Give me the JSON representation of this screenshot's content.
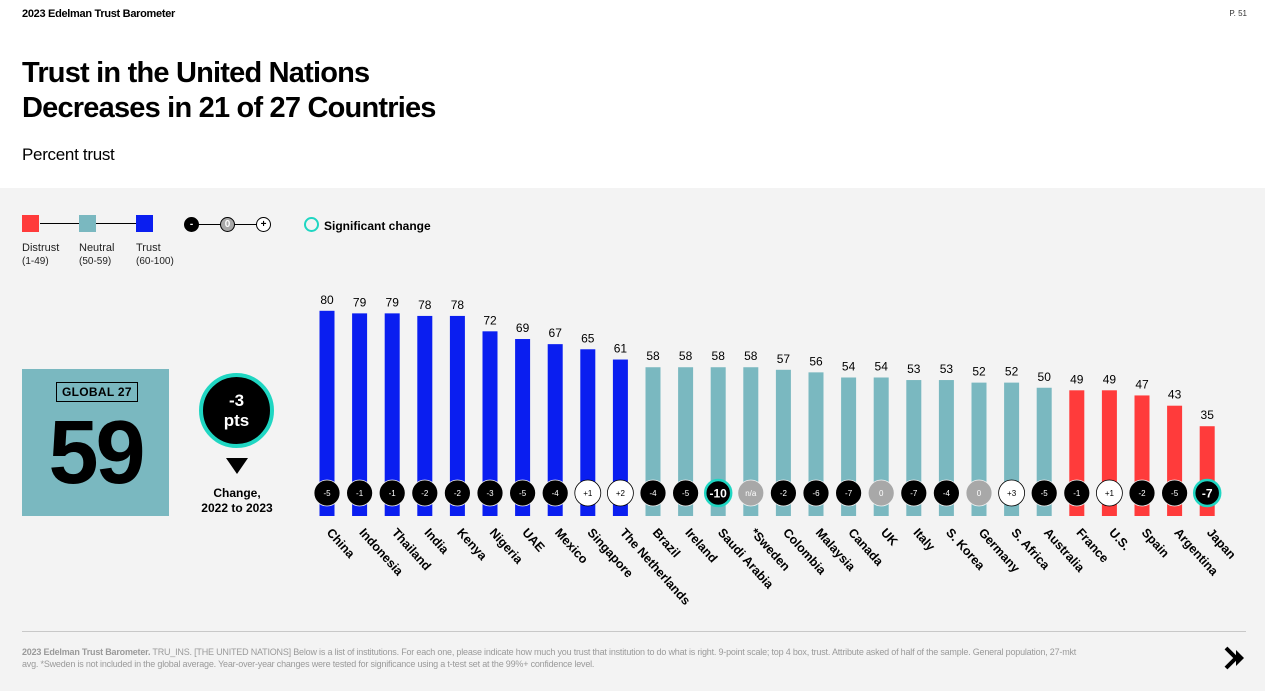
{
  "header": {
    "brand": "2023 Edelman Trust Barometer",
    "page": "P. 51"
  },
  "title_line1": "Trust in the United Nations",
  "title_line2": "Decreases in 21 of 27 Countries",
  "subtitle": "Percent trust",
  "legend": {
    "distrust": {
      "label": "Distrust",
      "range": "(1-49)",
      "color": "#ff3b3b"
    },
    "neutral": {
      "label": "Neutral",
      "range": "(50-59)",
      "color": "#7ab8c0"
    },
    "trust": {
      "label": "Trust",
      "range": "(60-100)",
      "color": "#0a1ef0"
    },
    "change_minus": "-",
    "change_zero": "0",
    "change_plus": "+",
    "significant": "Significant change",
    "significant_color": "#1fd6c2"
  },
  "global": {
    "tag": "GLOBAL 27",
    "value": "59",
    "change_line1": "-3",
    "change_line2": "pts",
    "change_label_line1": "Change,",
    "change_label_line2": "2022 to 2023"
  },
  "chart_data": {
    "type": "bar",
    "categories": [
      "China",
      "Indonesia",
      "Thailand",
      "India",
      "Kenya",
      "Nigeria",
      "UAE",
      "Mexico",
      "Singapore",
      "The Netherlands",
      "Brazil",
      "Ireland",
      "Saudi Arabia",
      "*Sweden",
      "Colombia",
      "Malaysia",
      "Canada",
      "UK",
      "Italy",
      "S. Korea",
      "Germany",
      "S. Africa",
      "Australia",
      "France",
      "U.S.",
      "Spain",
      "Argentina",
      "Japan"
    ],
    "values": [
      80,
      79,
      79,
      78,
      78,
      72,
      69,
      67,
      65,
      61,
      58,
      58,
      58,
      58,
      57,
      56,
      54,
      54,
      53,
      53,
      52,
      52,
      50,
      49,
      49,
      47,
      43,
      35
    ],
    "changes": [
      "-5",
      "-1",
      "-1",
      "-2",
      "-2",
      "-3",
      "-5",
      "-4",
      "+1",
      "+2",
      "-4",
      "-5",
      "-10",
      "n/a",
      "-2",
      "-6",
      "-7",
      "0",
      "-7",
      "-4",
      "0",
      "+3",
      "-5",
      "-1",
      "+1",
      "-2",
      "-5",
      "-7"
    ],
    "significant": [
      "Saudi Arabia",
      "Japan"
    ],
    "ylim": [
      0,
      100
    ],
    "colors": {
      "trust": "#0a1ef0",
      "neutral": "#7ab8c0",
      "distrust": "#ff3b3b"
    }
  },
  "footnote": {
    "bold": "2023 Edelman Trust Barometer.",
    "text": " TRU_INS. [THE UNITED NATIONS] Below is a list of institutions. For each one, please indicate how much you trust that institution to do what is right. 9-point scale; top 4 box, trust. Attribute asked of half of the sample. General population, 27-mkt avg. *Sweden is not included in the global average. Year-over-year changes were tested for significance using a t-test set at the 99%+ confidence level."
  }
}
